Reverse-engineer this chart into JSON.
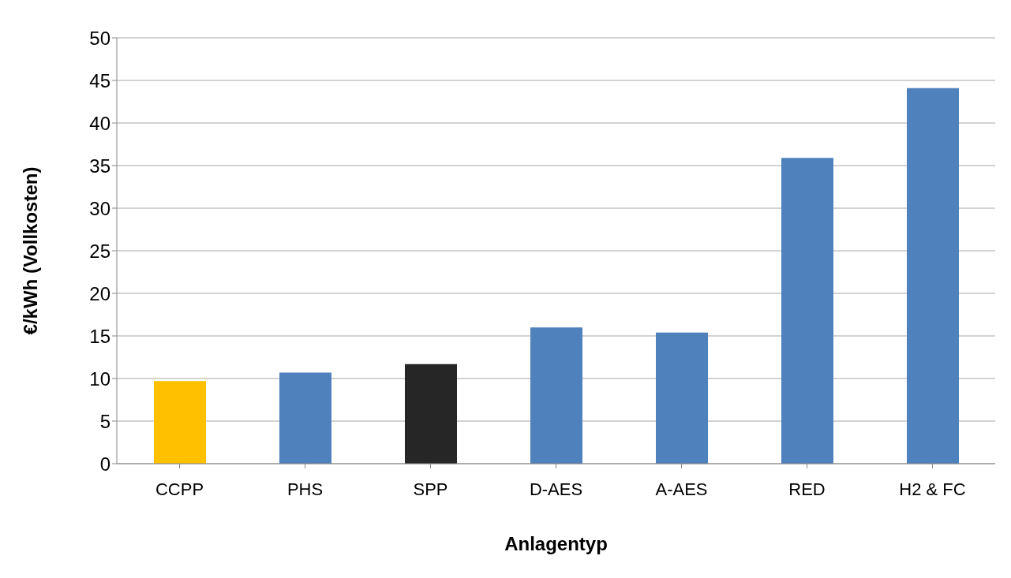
{
  "chart_data": {
    "type": "bar",
    "xlabel": "Anlagentyp",
    "ylabel": "€/kWh (Vollkosten)",
    "categories": [
      "CCPP",
      "PHS",
      "SPP",
      "D-AES",
      "A-AES",
      "RED",
      "H2 & FC"
    ],
    "values": [
      9.7,
      10.7,
      11.7,
      16.0,
      15.4,
      35.9,
      44.1
    ],
    "colors": [
      "#ffc000",
      "#4f81bd",
      "#262626",
      "#4f81bd",
      "#4f81bd",
      "#4f81bd",
      "#4f81bd"
    ],
    "ylim": [
      0,
      50
    ],
    "yticks": [
      0,
      5,
      10,
      15,
      20,
      25,
      30,
      35,
      40,
      45,
      50
    ],
    "grid": "y"
  }
}
